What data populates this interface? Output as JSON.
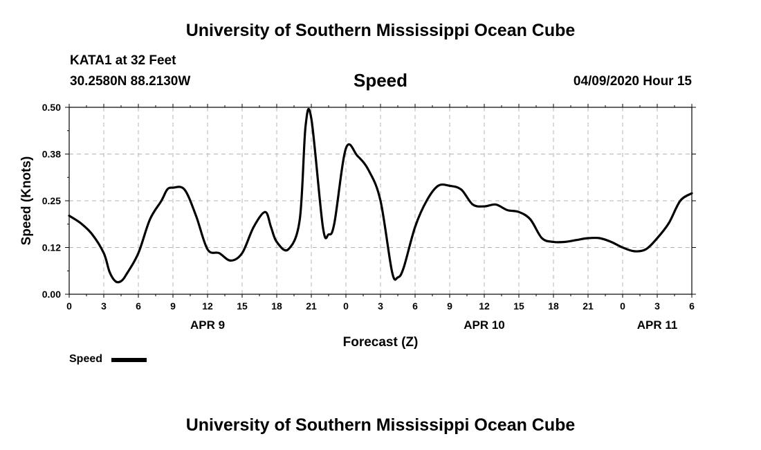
{
  "header": {
    "title_top": "University of Southern Mississippi Ocean Cube",
    "station": "KATA1 at 32 Feet",
    "coords": "30.2580N 88.2130W",
    "chart_title": "Speed",
    "issued": "04/09/2020 Hour 15",
    "title_bottom": "University of Southern Mississippi Ocean Cube"
  },
  "legend": {
    "label": "Speed"
  },
  "chart_data": {
    "type": "line",
    "title": "Speed",
    "xlabel": "Forecast (Z)",
    "ylabel": "Speed (Knots)",
    "xlim": [
      0,
      54
    ],
    "ylim": [
      0,
      0.5
    ],
    "yticks": [
      "0.00",
      "0.12",
      "0.25",
      "0.38",
      "0.50"
    ],
    "ytick_values": [
      0,
      0.125,
      0.25,
      0.375,
      0.5
    ],
    "xticks": [
      "0",
      "3",
      "6",
      "9",
      "12",
      "15",
      "18",
      "21",
      "0",
      "3",
      "6",
      "9",
      "12",
      "15",
      "18",
      "21",
      "0",
      "3",
      "6"
    ],
    "date_labels": [
      {
        "label": "APR 9",
        "hour": 12
      },
      {
        "label": "APR 10",
        "hour": 36
      },
      {
        "label": "APR 11",
        "hour": 51
      }
    ],
    "grid": true,
    "legend_position": "bottom-left",
    "series": [
      {
        "name": "Speed",
        "color": "#000000",
        "x": [
          0,
          1,
          2,
          3,
          3.5,
          4,
          4.5,
          5,
          6,
          7,
          8,
          8.5,
          9,
          10,
          11,
          12,
          13,
          14,
          15,
          16,
          17,
          17.5,
          18,
          19,
          20,
          20.5,
          21,
          22,
          22.5,
          23,
          24,
          25,
          26,
          27,
          28,
          28.5,
          29,
          30,
          31,
          32,
          33,
          34,
          35,
          36,
          37,
          38,
          39,
          40,
          41,
          42,
          43,
          44,
          45,
          46,
          47,
          48,
          49,
          50,
          51,
          52,
          53,
          54
        ],
        "y": [
          0.21,
          0.19,
          0.16,
          0.11,
          0.06,
          0.035,
          0.035,
          0.055,
          0.11,
          0.2,
          0.25,
          0.28,
          0.285,
          0.28,
          0.21,
          0.12,
          0.11,
          0.09,
          0.11,
          0.18,
          0.22,
          0.18,
          0.14,
          0.12,
          0.2,
          0.45,
          0.47,
          0.18,
          0.16,
          0.19,
          0.39,
          0.37,
          0.33,
          0.25,
          0.06,
          0.045,
          0.07,
          0.18,
          0.25,
          0.29,
          0.29,
          0.28,
          0.24,
          0.235,
          0.24,
          0.225,
          0.22,
          0.2,
          0.15,
          0.14,
          0.14,
          0.145,
          0.15,
          0.15,
          0.14,
          0.125,
          0.115,
          0.12,
          0.15,
          0.19,
          0.25,
          0.27
        ]
      }
    ]
  }
}
